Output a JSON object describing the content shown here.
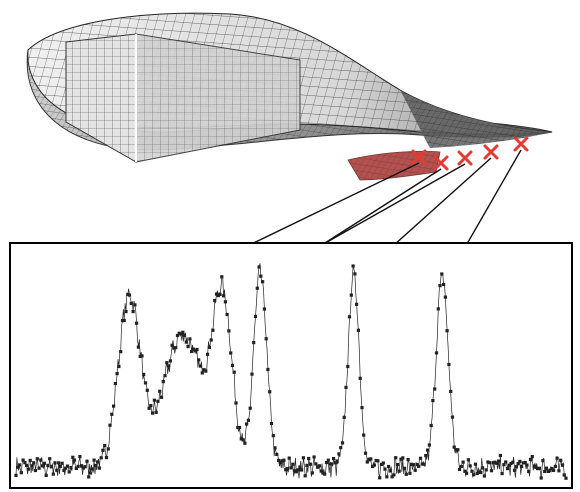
{
  "figure": {
    "colors": {
      "mesh_line": "#3a3a3a",
      "mesh_fill_light": "#f4f4f4",
      "mesh_fill_mid": "#d6d6d6",
      "mesh_fill_dark": "#8f8f8f",
      "highlight_patch": "#a8322e",
      "sensor_marker": "#e33a33",
      "arrow": "#111111",
      "signal": "#222222",
      "frame": "#000000"
    },
    "sensor_markers": [
      {
        "id": "sensor-1",
        "target_peak": 1
      },
      {
        "id": "sensor-2",
        "target_peak": 2
      },
      {
        "id": "sensor-3",
        "target_peak": 3
      },
      {
        "id": "sensor-4",
        "target_peak": 4
      },
      {
        "id": "sensor-5",
        "target_peak": 5
      }
    ]
  },
  "chart_data": {
    "type": "scatter",
    "grid": false,
    "legend": "none",
    "xlim": [
      0,
      1
    ],
    "ylim": [
      0,
      1
    ],
    "peaks": [
      {
        "x": 0.206,
        "y": 0.8,
        "w": 0.02
      },
      {
        "x": 0.303,
        "y": 0.64,
        "w": 0.035
      },
      {
        "x": 0.375,
        "y": 0.78,
        "w": 0.018
      },
      {
        "x": 0.444,
        "y": 0.9,
        "w": 0.012
      },
      {
        "x": 0.614,
        "y": 0.9,
        "w": 0.01
      },
      {
        "x": 0.775,
        "y": 0.89,
        "w": 0.011
      }
    ],
    "baseline": 0.08
  }
}
